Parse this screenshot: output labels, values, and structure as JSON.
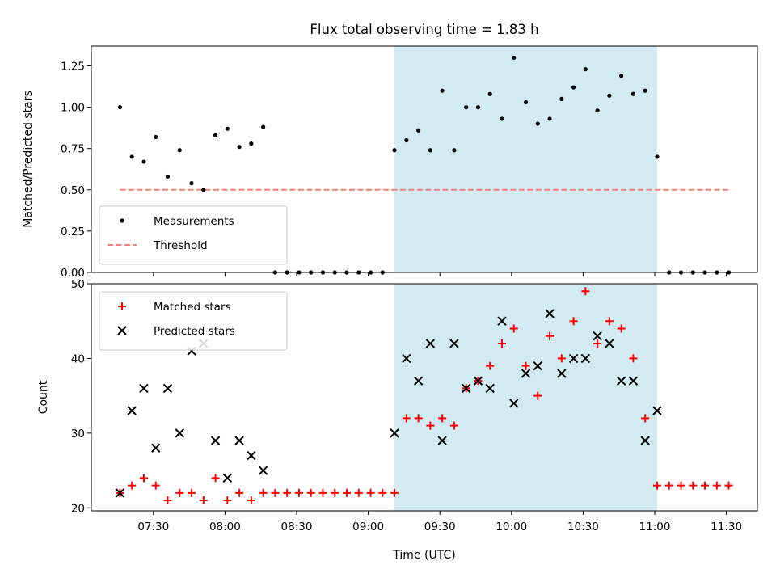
{
  "chart_data": {
    "type": "scatter",
    "title": "Flux total observing time = 1.83 h",
    "xlabel": "Time (UTC)",
    "x_ticks": [
      "07:30",
      "08:00",
      "08:30",
      "09:00",
      "09:30",
      "10:00",
      "10:30",
      "11:00",
      "11:30"
    ],
    "xlim": [
      "07:04",
      "11:43"
    ],
    "highlight_span": [
      "09:11",
      "11:01"
    ],
    "highlight_color": "#add8e6",
    "panels": [
      {
        "ylabel": "Matched/Predicted stars",
        "ylim": [
          0,
          1.37
        ],
        "yticks": [
          "0.00",
          "0.25",
          "0.50",
          "0.75",
          "1.00",
          "1.25"
        ],
        "legend_position": "lower-left",
        "threshold": {
          "name": "Threshold",
          "value": 0.5,
          "x_range": [
            "07:16",
            "11:31"
          ],
          "color": "#f08080",
          "style": "dashed"
        },
        "series": [
          {
            "name": "Measurements",
            "marker": "dot",
            "color": "#000000",
            "points": [
              [
                "07:16",
                1.0
              ],
              [
                "07:21",
                0.7
              ],
              [
                "07:26",
                0.67
              ],
              [
                "07:31",
                0.82
              ],
              [
                "07:36",
                0.58
              ],
              [
                "07:41",
                0.74
              ],
              [
                "07:46",
                0.54
              ],
              [
                "07:51",
                0.5
              ],
              [
                "07:56",
                0.83
              ],
              [
                "08:01",
                0.87
              ],
              [
                "08:06",
                0.76
              ],
              [
                "08:11",
                0.78
              ],
              [
                "08:16",
                0.88
              ],
              [
                "08:21",
                0.0
              ],
              [
                "08:26",
                0.0
              ],
              [
                "08:31",
                0.0
              ],
              [
                "08:36",
                0.0
              ],
              [
                "08:41",
                0.0
              ],
              [
                "08:46",
                0.0
              ],
              [
                "08:51",
                0.0
              ],
              [
                "08:56",
                0.0
              ],
              [
                "09:01",
                0.0
              ],
              [
                "09:06",
                0.0
              ],
              [
                "09:11",
                0.74
              ],
              [
                "09:16",
                0.8
              ],
              [
                "09:21",
                0.86
              ],
              [
                "09:26",
                0.74
              ],
              [
                "09:31",
                1.1
              ],
              [
                "09:36",
                0.74
              ],
              [
                "09:41",
                1.0
              ],
              [
                "09:46",
                1.0
              ],
              [
                "09:51",
                1.08
              ],
              [
                "09:56",
                0.93
              ],
              [
                "10:01",
                1.3
              ],
              [
                "10:06",
                1.03
              ],
              [
                "10:11",
                0.9
              ],
              [
                "10:16",
                0.93
              ],
              [
                "10:21",
                1.05
              ],
              [
                "10:26",
                1.12
              ],
              [
                "10:31",
                1.23
              ],
              [
                "10:36",
                0.98
              ],
              [
                "10:41",
                1.07
              ],
              [
                "10:46",
                1.19
              ],
              [
                "10:51",
                1.08
              ],
              [
                "10:56",
                1.1
              ],
              [
                "11:01",
                0.7
              ],
              [
                "11:06",
                0.0
              ],
              [
                "11:11",
                0.0
              ],
              [
                "11:16",
                0.0
              ],
              [
                "11:21",
                0.0
              ],
              [
                "11:26",
                0.0
              ],
              [
                "11:31",
                0.0
              ]
            ]
          }
        ]
      },
      {
        "ylabel": "Count",
        "ylim": [
          19.6,
          50
        ],
        "yticks": [
          "20",
          "30",
          "40",
          "50"
        ],
        "legend_position": "upper-left",
        "series": [
          {
            "name": "Matched stars",
            "marker": "plus",
            "color": "#ff0000",
            "points": [
              [
                "07:16",
                22
              ],
              [
                "07:21",
                23
              ],
              [
                "07:26",
                24
              ],
              [
                "07:31",
                23
              ],
              [
                "07:36",
                21
              ],
              [
                "07:41",
                22
              ],
              [
                "07:46",
                22
              ],
              [
                "07:51",
                21
              ],
              [
                "07:56",
                24
              ],
              [
                "08:01",
                21
              ],
              [
                "08:06",
                22
              ],
              [
                "08:11",
                21
              ],
              [
                "08:16",
                22
              ],
              [
                "08:21",
                22
              ],
              [
                "08:26",
                22
              ],
              [
                "08:31",
                22
              ],
              [
                "08:36",
                22
              ],
              [
                "08:41",
                22
              ],
              [
                "08:46",
                22
              ],
              [
                "08:51",
                22
              ],
              [
                "08:56",
                22
              ],
              [
                "09:01",
                22
              ],
              [
                "09:06",
                22
              ],
              [
                "09:11",
                22
              ],
              [
                "09:16",
                32
              ],
              [
                "09:21",
                32
              ],
              [
                "09:26",
                31
              ],
              [
                "09:31",
                32
              ],
              [
                "09:36",
                31
              ],
              [
                "09:41",
                36
              ],
              [
                "09:46",
                37
              ],
              [
                "09:51",
                39
              ],
              [
                "09:56",
                42
              ],
              [
                "10:01",
                44
              ],
              [
                "10:06",
                39
              ],
              [
                "10:11",
                35
              ],
              [
                "10:16",
                43
              ],
              [
                "10:21",
                40
              ],
              [
                "10:26",
                45
              ],
              [
                "10:31",
                49
              ],
              [
                "10:36",
                42
              ],
              [
                "10:41",
                45
              ],
              [
                "10:46",
                44
              ],
              [
                "10:51",
                40
              ],
              [
                "10:56",
                32
              ],
              [
                "11:01",
                23
              ],
              [
                "11:06",
                23
              ],
              [
                "11:11",
                23
              ],
              [
                "11:16",
                23
              ],
              [
                "11:21",
                23
              ],
              [
                "11:26",
                23
              ],
              [
                "11:31",
                23
              ]
            ]
          },
          {
            "name": "Predicted stars",
            "marker": "x",
            "color": "#000000",
            "points": [
              [
                "07:16",
                22
              ],
              [
                "07:21",
                33
              ],
              [
                "07:26",
                36
              ],
              [
                "07:31",
                28
              ],
              [
                "07:36",
                36
              ],
              [
                "07:41",
                30
              ],
              [
                "07:46",
                41
              ],
              [
                "07:51",
                42
              ],
              [
                "07:56",
                29
              ],
              [
                "08:01",
                24
              ],
              [
                "08:06",
                29
              ],
              [
                "08:11",
                27
              ],
              [
                "08:16",
                25
              ],
              [
                "09:11",
                30
              ],
              [
                "09:16",
                40
              ],
              [
                "09:21",
                37
              ],
              [
                "09:26",
                42
              ],
              [
                "09:31",
                29
              ],
              [
                "09:36",
                42
              ],
              [
                "09:41",
                36
              ],
              [
                "09:46",
                37
              ],
              [
                "09:51",
                36
              ],
              [
                "09:56",
                45
              ],
              [
                "10:01",
                34
              ],
              [
                "10:06",
                38
              ],
              [
                "10:11",
                39
              ],
              [
                "10:16",
                46
              ],
              [
                "10:21",
                38
              ],
              [
                "10:26",
                40
              ],
              [
                "10:31",
                40
              ],
              [
                "10:36",
                43
              ],
              [
                "10:41",
                42
              ],
              [
                "10:46",
                37
              ],
              [
                "10:51",
                37
              ],
              [
                "10:56",
                29
              ],
              [
                "11:01",
                33
              ]
            ]
          }
        ]
      }
    ]
  }
}
